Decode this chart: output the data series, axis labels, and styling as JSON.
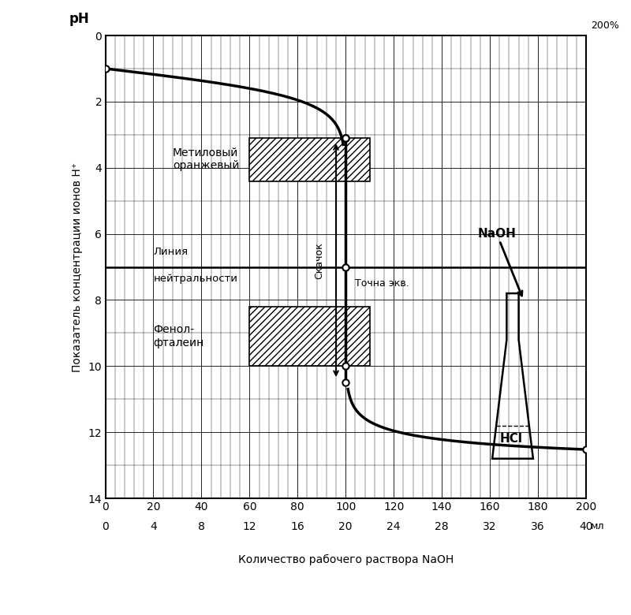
{
  "ylabel": "Показатель концентрации ионов H⁺",
  "xlabel": "Количество рабочего раствора NaOH",
  "xlim": [
    0,
    200
  ],
  "ylim": [
    14,
    0
  ],
  "xticks_pct": [
    0,
    20,
    40,
    60,
    80,
    100,
    120,
    140,
    160,
    180,
    200
  ],
  "xticks_ml": [
    0,
    4,
    8,
    12,
    16,
    20,
    24,
    28,
    32,
    36,
    40
  ],
  "yticks": [
    0,
    2,
    4,
    6,
    8,
    10,
    12,
    14
  ],
  "neutrality_ph": 7,
  "jump_top_ph": 3.1,
  "jump_bottom_ph": 10.5,
  "methyl_orange_ph_lo": 3.1,
  "methyl_orange_ph_hi": 4.4,
  "methyl_orange_x_lo": 60,
  "methyl_orange_x_hi": 110,
  "phenolphthalein_ph_lo": 8.2,
  "phenolphthalein_ph_hi": 10.0,
  "phenolphthalein_x_lo": 60,
  "phenolphthalein_x_hi": 110,
  "label_methyl": "Метиловый\nоранжевый",
  "label_phenol": "Фенол-\nфталеин",
  "label_neutrality_line1": "Линия",
  "label_neutrality_line2": "нейтральности",
  "label_skachok": "Скачок",
  "label_tochka": "Точна экв.",
  "label_naoh": "NaOH",
  "label_hcl": "HCl",
  "bg_color": "#ffffff",
  "curve_color": "#000000"
}
